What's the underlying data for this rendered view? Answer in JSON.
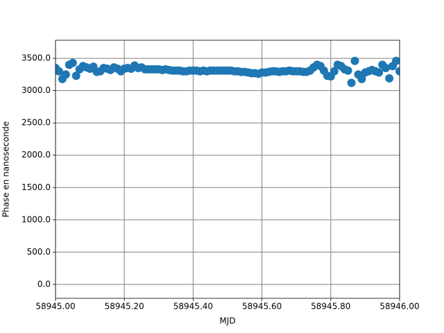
{
  "chart_data": {
    "type": "scatter",
    "xlabel": "MJD",
    "ylabel": "Phase en nanoseconde",
    "color": "#1f77b4",
    "grid": true,
    "xlim": [
      58945.0,
      58946.0
    ],
    "xticks": [
      {
        "value": 58945.0,
        "label": "58945.00"
      },
      {
        "value": 58945.2,
        "label": "58945.20"
      },
      {
        "value": 58945.4,
        "label": "58945.40"
      },
      {
        "value": 58945.6,
        "label": "58945.60"
      },
      {
        "value": 58945.8,
        "label": "58945.80"
      },
      {
        "value": 58946.0,
        "label": "58946.00"
      }
    ],
    "ylim": [
      -215,
      3780
    ],
    "yticks": [
      {
        "value": 0,
        "label": "0.0"
      },
      {
        "value": 500,
        "label": "500.0"
      },
      {
        "value": 1000,
        "label": "1000.0"
      },
      {
        "value": 1500,
        "label": "1500.0"
      },
      {
        "value": 2000,
        "label": "2000.0"
      },
      {
        "value": 2500,
        "label": "2500.0"
      },
      {
        "value": 3000,
        "label": "3000.0"
      },
      {
        "value": 3500,
        "label": "3500.0"
      }
    ],
    "x": [
      58945.0,
      58945.01,
      58945.02,
      58945.03,
      58945.04,
      58945.05,
      58945.06,
      58945.07,
      58945.08,
      58945.09,
      58945.1,
      58945.11,
      58945.12,
      58945.13,
      58945.14,
      58945.15,
      58945.16,
      58945.17,
      58945.18,
      58945.19,
      58945.2,
      58945.21,
      58945.22,
      58945.23,
      58945.24,
      58945.25,
      58945.26,
      58945.27,
      58945.28,
      58945.29,
      58945.3,
      58945.31,
      58945.32,
      58945.33,
      58945.34,
      58945.35,
      58945.36,
      58945.37,
      58945.38,
      58945.39,
      58945.4,
      58945.41,
      58945.42,
      58945.43,
      58945.44,
      58945.45,
      58945.46,
      58945.47,
      58945.48,
      58945.49,
      58945.5,
      58945.51,
      58945.52,
      58945.53,
      58945.54,
      58945.55,
      58945.56,
      58945.57,
      58945.58,
      58945.59,
      58945.6,
      58945.61,
      58945.62,
      58945.63,
      58945.64,
      58945.65,
      58945.66,
      58945.67,
      58945.68,
      58945.69,
      58945.7,
      58945.71,
      58945.72,
      58945.73,
      58945.74,
      58945.75,
      58945.76,
      58945.77,
      58945.78,
      58945.79,
      58945.8,
      58945.81,
      58945.82,
      58945.83,
      58945.84,
      58945.85,
      58945.86,
      58945.87,
      58945.88,
      58945.89,
      58945.9,
      58945.91,
      58945.92,
      58945.93,
      58945.94,
      58945.95,
      58945.96,
      58945.97,
      58945.98,
      58945.99,
      58946.0
    ],
    "values": [
      3350,
      3300,
      3180,
      3250,
      3400,
      3430,
      3230,
      3330,
      3380,
      3360,
      3340,
      3370,
      3290,
      3300,
      3350,
      3340,
      3320,
      3360,
      3340,
      3300,
      3340,
      3350,
      3340,
      3390,
      3350,
      3360,
      3330,
      3330,
      3330,
      3330,
      3330,
      3320,
      3330,
      3320,
      3310,
      3310,
      3310,
      3300,
      3300,
      3310,
      3310,
      3310,
      3300,
      3310,
      3300,
      3310,
      3310,
      3310,
      3310,
      3310,
      3310,
      3310,
      3300,
      3300,
      3290,
      3290,
      3280,
      3270,
      3270,
      3260,
      3280,
      3280,
      3290,
      3300,
      3300,
      3290,
      3300,
      3300,
      3310,
      3300,
      3300,
      3300,
      3290,
      3290,
      3310,
      3360,
      3400,
      3380,
      3310,
      3230,
      3220,
      3300,
      3400,
      3380,
      3330,
      3310,
      3120,
      3460,
      3250,
      3180,
      3280,
      3300,
      3320,
      3300,
      3280,
      3400,
      3350,
      3190,
      3380,
      3460,
      3300
    ]
  }
}
